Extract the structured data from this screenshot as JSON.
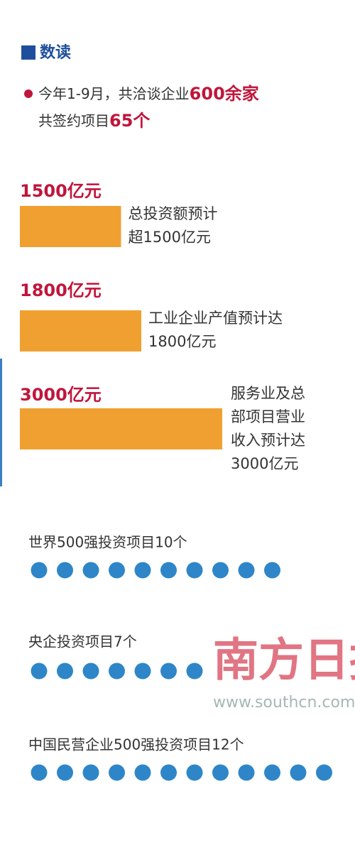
{
  "header": {
    "title": "数读"
  },
  "intro": {
    "line1": "今年1-9月，共洽谈企业",
    "line1_highlight": "600余家",
    "line2": "共签约项目",
    "line2_highlight": "65个"
  },
  "bars": [
    {
      "label": "1500亿元",
      "value": 1500,
      "description": [
        "总投资额预计",
        "超1500亿元"
      ]
    },
    {
      "label": "1800亿元",
      "value": 1800,
      "description": [
        "工业企业产值预计达",
        "1800亿元"
      ]
    },
    {
      "label": "3000亿元",
      "value": 3000,
      "description": [
        "服务业及总",
        "部项目营业",
        "收入预计达",
        "3000亿元"
      ]
    }
  ],
  "bar_color": "#f0a030",
  "dot_groups": [
    {
      "label": "世界500强投资项目10个",
      "count": 10
    },
    {
      "label": "央企投资项目7个",
      "count": 7
    },
    {
      "label": "中国民营企业500强投资项目12个",
      "count": 12
    }
  ],
  "dot_color": "#2e86c8",
  "watermark": {
    "logo": "南方日报",
    "url": "www.southcn.com"
  }
}
